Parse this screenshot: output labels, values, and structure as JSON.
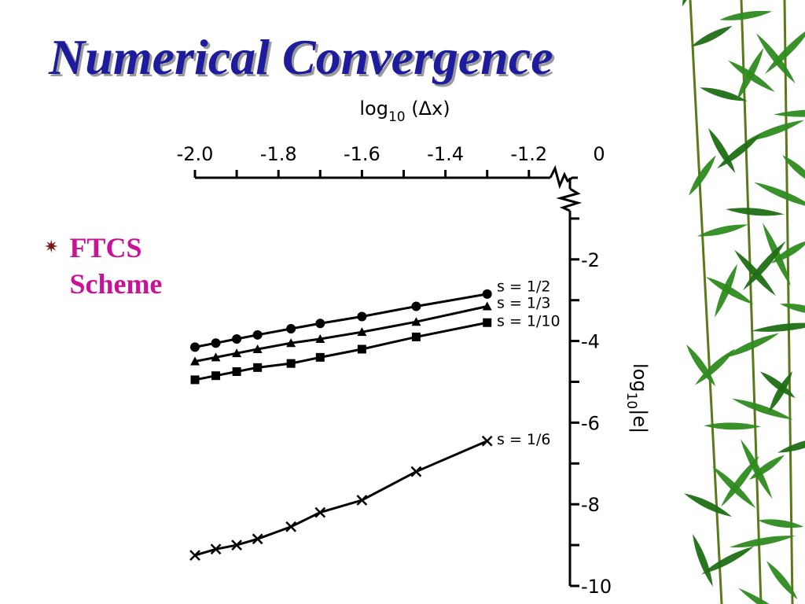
{
  "slide": {
    "title": "Numerical Convergence",
    "bullet_marker": "✷",
    "bullet_lines": [
      "FTCS",
      "Scheme"
    ]
  },
  "colors": {
    "title": "#1c1c9c",
    "title_shadow": "#9a9a9a",
    "bullet_text": "#cc1199",
    "leaf_green": "#2e8b1e"
  },
  "chart_data": {
    "type": "line",
    "x_axis": {
      "label_main": "log",
      "label_sub": "10",
      "label_rest": " (Δx)",
      "range": [
        -2.0,
        0
      ],
      "ticks": [
        -2.0,
        -1.9,
        -1.8,
        -1.7,
        -1.6,
        -1.5,
        -1.4,
        -1.3,
        -1.2
      ],
      "tick_labels": [
        "-2.0",
        "-1.8",
        "-1.6",
        "-1.4",
        "-1.2",
        "0"
      ],
      "position": "top",
      "axis_break": true
    },
    "y_axis": {
      "label_main": "log",
      "label_sub": "10",
      "label_rest": "|e|",
      "range": [
        -10,
        0
      ],
      "ticks": [
        -1,
        -2,
        -3,
        -4,
        -5,
        -6,
        -7,
        -8,
        -9,
        -10
      ],
      "tick_labels": [
        "-2",
        "-4",
        "-6",
        "-8",
        "-10"
      ],
      "position": "right"
    },
    "grid": false,
    "legend": "labels at line ends",
    "series": [
      {
        "name": "s = 1/2",
        "marker": "circle",
        "x": [
          -2.0,
          -1.95,
          -1.9,
          -1.85,
          -1.77,
          -1.7,
          -1.6,
          -1.47,
          -1.3
        ],
        "y": [
          -4.15,
          -4.05,
          -3.95,
          -3.85,
          -3.7,
          -3.57,
          -3.4,
          -3.15,
          -2.85
        ]
      },
      {
        "name": "s = 1/3",
        "marker": "triangle",
        "x": [
          -2.0,
          -1.95,
          -1.9,
          -1.85,
          -1.77,
          -1.7,
          -1.6,
          -1.47,
          -1.3
        ],
        "y": [
          -4.5,
          -4.4,
          -4.3,
          -4.2,
          -4.05,
          -3.95,
          -3.78,
          -3.53,
          -3.15
        ]
      },
      {
        "name": "s = 1/10",
        "marker": "square",
        "x": [
          -2.0,
          -1.95,
          -1.9,
          -1.85,
          -1.77,
          -1.7,
          -1.6,
          -1.47,
          -1.3
        ],
        "y": [
          -4.95,
          -4.85,
          -4.75,
          -4.65,
          -4.55,
          -4.4,
          -4.2,
          -3.9,
          -3.55
        ]
      },
      {
        "name": "s = 1/6",
        "marker": "x",
        "x": [
          -2.0,
          -1.95,
          -1.9,
          -1.85,
          -1.77,
          -1.7,
          -1.6,
          -1.47,
          -1.3
        ],
        "y": [
          -9.25,
          -9.1,
          -9.0,
          -8.85,
          -8.55,
          -8.2,
          -7.9,
          -7.2,
          -6.45
        ]
      }
    ]
  }
}
